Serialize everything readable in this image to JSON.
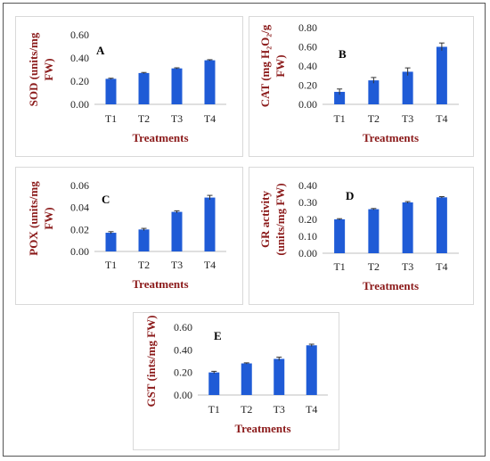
{
  "colors": {
    "bar": "#1f5bd6",
    "axis_title": "#8b1a1a",
    "frame": "#555555",
    "panel_border": "#d9d9d9"
  },
  "chart_data": [
    {
      "type": "bar",
      "letter": "A",
      "categories": [
        "T1",
        "T2",
        "T3",
        "T4"
      ],
      "values": [
        0.22,
        0.27,
        0.31,
        0.38
      ],
      "errors": [
        0.005,
        0.005,
        0.005,
        0.005
      ],
      "ylim": [
        0,
        0.6
      ],
      "yticks": [
        "0.00",
        "0.20",
        "0.40",
        "0.60"
      ],
      "ylabel_lines": [
        "SOD (units/mg",
        "FW)"
      ],
      "xlabel": "Treatments"
    },
    {
      "type": "bar",
      "letter": "B",
      "categories": [
        "T1",
        "T2",
        "T3",
        "T4"
      ],
      "values": [
        0.13,
        0.25,
        0.34,
        0.6
      ],
      "errors": [
        0.03,
        0.03,
        0.04,
        0.04
      ],
      "ylim": [
        0,
        0.8
      ],
      "yticks": [
        "0.00",
        "0.20",
        "0.40",
        "0.60",
        "0.80"
      ],
      "ylabel_lines": [
        "CAT (mg H₂O₂/g",
        "FW)"
      ],
      "xlabel": "Treatments"
    },
    {
      "type": "bar",
      "letter": "C",
      "categories": [
        "T1",
        "T2",
        "T3",
        "T4"
      ],
      "values": [
        0.017,
        0.02,
        0.036,
        0.049
      ],
      "errors": [
        0.001,
        0.001,
        0.001,
        0.002
      ],
      "ylim": [
        0,
        0.06
      ],
      "yticks": [
        "0.00",
        "0.02",
        "0.04",
        "0.06"
      ],
      "ylabel_lines": [
        "POX (units/mg",
        "FW)"
      ],
      "xlabel": "Treatments"
    },
    {
      "type": "bar",
      "letter": "D",
      "categories": [
        "T1",
        "T2",
        "T3",
        "T4"
      ],
      "values": [
        0.2,
        0.26,
        0.3,
        0.33
      ],
      "errors": [
        0.004,
        0.004,
        0.005,
        0.004
      ],
      "ylim": [
        0,
        0.4
      ],
      "yticks": [
        "0.00",
        "0.10",
        "0.20",
        "0.30",
        "0.40"
      ],
      "ylabel_lines": [
        "GR activity",
        "(units/mg FW)"
      ],
      "xlabel": "Treatments"
    },
    {
      "type": "bar",
      "letter": "E",
      "categories": [
        "T1",
        "T2",
        "T3",
        "T4"
      ],
      "values": [
        0.2,
        0.28,
        0.32,
        0.44
      ],
      "errors": [
        0.01,
        0.005,
        0.015,
        0.01
      ],
      "ylim": [
        0,
        0.6
      ],
      "yticks": [
        "0.00",
        "0.20",
        "0.40",
        "0.60"
      ],
      "ylabel_lines": [
        "GST (ints/mg FW)"
      ],
      "xlabel": "Treatments"
    }
  ]
}
